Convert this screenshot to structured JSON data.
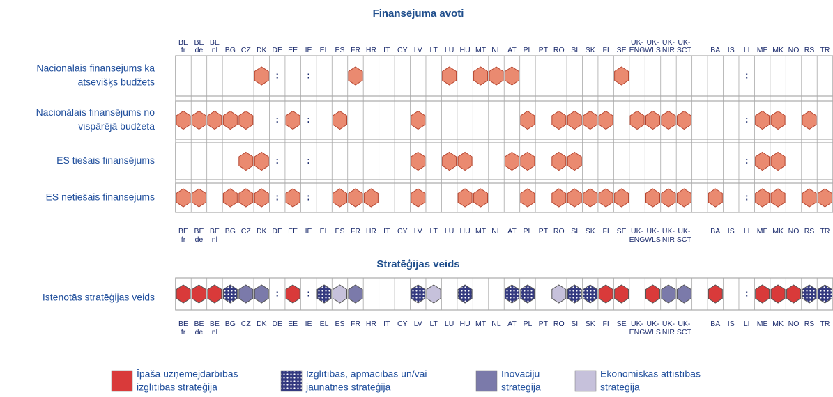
{
  "funding": {
    "title": "Finansējuma avoti",
    "columns": [
      [
        "BE",
        "fr"
      ],
      [
        "BE",
        "de"
      ],
      [
        "BE",
        "nl"
      ],
      [
        "BG"
      ],
      [
        "CZ"
      ],
      [
        "DK"
      ],
      [
        "DE"
      ],
      [
        "EE"
      ],
      [
        "IE"
      ],
      [
        "EL"
      ],
      [
        "ES"
      ],
      [
        "FR"
      ],
      [
        "HR"
      ],
      [
        "IT"
      ],
      [
        "CY"
      ],
      [
        "LV"
      ],
      [
        "LT"
      ],
      [
        "LU"
      ],
      [
        "HU"
      ],
      [
        "MT"
      ],
      [
        "NL"
      ],
      [
        "AT"
      ],
      [
        "PL"
      ],
      [
        "PT"
      ],
      [
        "RO"
      ],
      [
        "SI"
      ],
      [
        "SK"
      ],
      [
        "FI"
      ],
      [
        "SE"
      ],
      [
        "UK-",
        "ENG"
      ],
      [
        "UK-",
        "WLS"
      ],
      [
        "UK-",
        "NIR"
      ],
      [
        "UK-",
        "SCT"
      ],
      [
        "BA"
      ],
      [
        "IS"
      ],
      [
        "LI"
      ],
      [
        "ME"
      ],
      [
        "MK"
      ],
      [
        "NO"
      ],
      [
        "RS"
      ],
      [
        "TR"
      ]
    ],
    "color": "#ea8a70",
    "rows": [
      {
        "label": [
          "Nacionālais finansējums kā",
          "atsevišķs budžets"
        ],
        "cells": [
          0,
          0,
          0,
          0,
          0,
          1,
          ":",
          0,
          ":",
          0,
          0,
          1,
          0,
          0,
          0,
          0,
          0,
          1,
          0,
          1,
          1,
          1,
          0,
          0,
          0,
          0,
          0,
          0,
          1,
          0,
          0,
          0,
          0,
          0,
          0,
          ":",
          0,
          0,
          0,
          0,
          0
        ]
      },
      {
        "label": [
          "Nacionālais finansējums no",
          "vispārējā budžeta"
        ],
        "cells": [
          1,
          1,
          1,
          1,
          1,
          0,
          ":",
          1,
          ":",
          0,
          1,
          0,
          0,
          0,
          0,
          1,
          0,
          0,
          0,
          0,
          0,
          0,
          1,
          0,
          1,
          1,
          1,
          1,
          0,
          1,
          1,
          1,
          1,
          0,
          0,
          ":",
          1,
          1,
          0,
          1,
          0
        ]
      },
      {
        "label": [
          "ES tiešais finansējums"
        ],
        "cells": [
          0,
          0,
          0,
          0,
          1,
          1,
          ":",
          0,
          ":",
          0,
          0,
          0,
          0,
          0,
          0,
          1,
          0,
          1,
          1,
          0,
          0,
          1,
          1,
          0,
          1,
          1,
          0,
          0,
          0,
          0,
          0,
          0,
          0,
          0,
          0,
          ":",
          1,
          1,
          0,
          0,
          0
        ]
      },
      {
        "label": [
          "ES netiešais finansējums"
        ],
        "cells": [
          1,
          1,
          0,
          1,
          1,
          1,
          ":",
          1,
          ":",
          0,
          1,
          1,
          1,
          0,
          0,
          1,
          0,
          0,
          1,
          1,
          0,
          0,
          1,
          0,
          1,
          1,
          1,
          1,
          1,
          0,
          1,
          1,
          1,
          1,
          0,
          ":",
          1,
          1,
          0,
          1,
          1
        ]
      }
    ]
  },
  "strategy": {
    "title": "Stratēģijas veids",
    "row_label": "Īstenotās stratēģijas veids",
    "cells": [
      0,
      0,
      0,
      1,
      2,
      2,
      ":",
      0,
      ":",
      1,
      3,
      2,
      null,
      null,
      null,
      1,
      3,
      null,
      1,
      null,
      null,
      1,
      1,
      null,
      3,
      1,
      1,
      0,
      0,
      null,
      0,
      2,
      2,
      0,
      null,
      ":",
      0,
      0,
      0,
      1,
      1
    ],
    "legend": [
      {
        "label": [
          "Īpaša uzņēmējdarbības",
          "izglītības stratēģija"
        ],
        "color": "#d93a3a"
      },
      {
        "label": [
          "Izglītības, apmācības un/vai",
          "jaunatnes stratēģija"
        ],
        "color": "#343a80",
        "pattern": true
      },
      {
        "label": [
          "Inovāciju",
          "stratēģija"
        ],
        "color": "#7b7aaa"
      },
      {
        "label": [
          "Ekonomiskās attīstības",
          "stratēģija"
        ],
        "color": "#c6c1db"
      }
    ]
  }
}
